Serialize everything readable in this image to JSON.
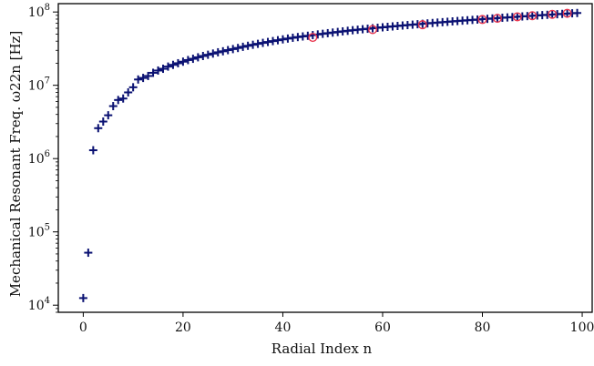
{
  "chart_data": {
    "type": "scatter",
    "xlabel": "Radial Index n",
    "ylabel": "Mechanical Resonant Freq. ω22n [Hz]",
    "xlim": [
      -5,
      102
    ],
    "ylim": [
      8000,
      130000000
    ],
    "yscale": "log",
    "grid": false,
    "x_ticks": [
      0,
      20,
      40,
      60,
      80,
      100
    ],
    "y_ticks": [
      {
        "value": 10000,
        "base": "10",
        "exp": "4"
      },
      {
        "value": 100000,
        "base": "10",
        "exp": "5"
      },
      {
        "value": 1000000,
        "base": "10",
        "exp": "6"
      },
      {
        "value": 10000000,
        "base": "10",
        "exp": "7"
      },
      {
        "value": 100000000,
        "base": "10",
        "exp": "8"
      }
    ],
    "marker_color": "#0a1172",
    "highlight_color": "#e8364f",
    "series": [
      {
        "marker": "plus",
        "x": [
          0,
          1,
          2,
          3,
          4,
          5,
          6,
          7,
          8,
          9,
          10,
          11,
          12,
          13,
          14,
          15,
          16,
          17,
          18,
          19,
          20,
          21,
          22,
          23,
          24,
          25,
          26,
          27,
          28,
          29,
          30,
          31,
          32,
          33,
          34,
          35,
          36,
          37,
          38,
          39,
          40,
          41,
          42,
          43,
          44,
          45,
          46,
          47,
          48,
          49,
          50,
          51,
          52,
          53,
          54,
          55,
          56,
          57,
          58,
          59,
          60,
          61,
          62,
          63,
          64,
          65,
          66,
          67,
          68,
          69,
          70,
          71,
          72,
          73,
          74,
          75,
          76,
          77,
          78,
          79,
          80,
          81,
          82,
          83,
          84,
          85,
          86,
          87,
          88,
          89,
          90,
          91,
          92,
          93,
          94,
          95,
          96,
          97,
          98,
          99
        ],
        "y": [
          12500,
          52000,
          1300000,
          2600000,
          3200000,
          3900000,
          5200000,
          6300000,
          6600000,
          8000000,
          9400000,
          12000000,
          12600000,
          13400000,
          14800000,
          15900000,
          16800000,
          18000000,
          19000000,
          20000000,
          21000000,
          22100000,
          23000000,
          24100000,
          25100000,
          26100000,
          27100000,
          28200000,
          29100000,
          30200000,
          31200000,
          32300000,
          33500000,
          34600000,
          35700000,
          36800000,
          37900000,
          39000000,
          40100000,
          41200000,
          42300000,
          43400000,
          44500000,
          45500000,
          46400000,
          47400000,
          48400000,
          49400000,
          50400000,
          51400000,
          52400000,
          53400000,
          54400000,
          55400000,
          56400000,
          57300000,
          58200000,
          59100000,
          60000000,
          60900000,
          61800000,
          62700000,
          63600000,
          64500000,
          65400000,
          66300000,
          67200000,
          68100000,
          69000000,
          69900000,
          70800000,
          71700000,
          72600000,
          73500000,
          74400000,
          75300000,
          76200000,
          77100000,
          78000000,
          78900000,
          79800000,
          80700000,
          81600000,
          82500000,
          83400000,
          84300000,
          85200000,
          86100000,
          87000000,
          87900000,
          88800000,
          89700000,
          90600000,
          91500000,
          92400000,
          93300000,
          94200000,
          95100000,
          96000000,
          96900000
        ]
      },
      {
        "marker": "circle",
        "x": [
          46,
          58,
          68,
          80,
          83,
          87,
          90,
          94,
          97
        ],
        "y": [
          45000000,
          57500000,
          67000000,
          79000000,
          82000000,
          86000000,
          89000000,
          93000000,
          96000000
        ]
      }
    ]
  }
}
